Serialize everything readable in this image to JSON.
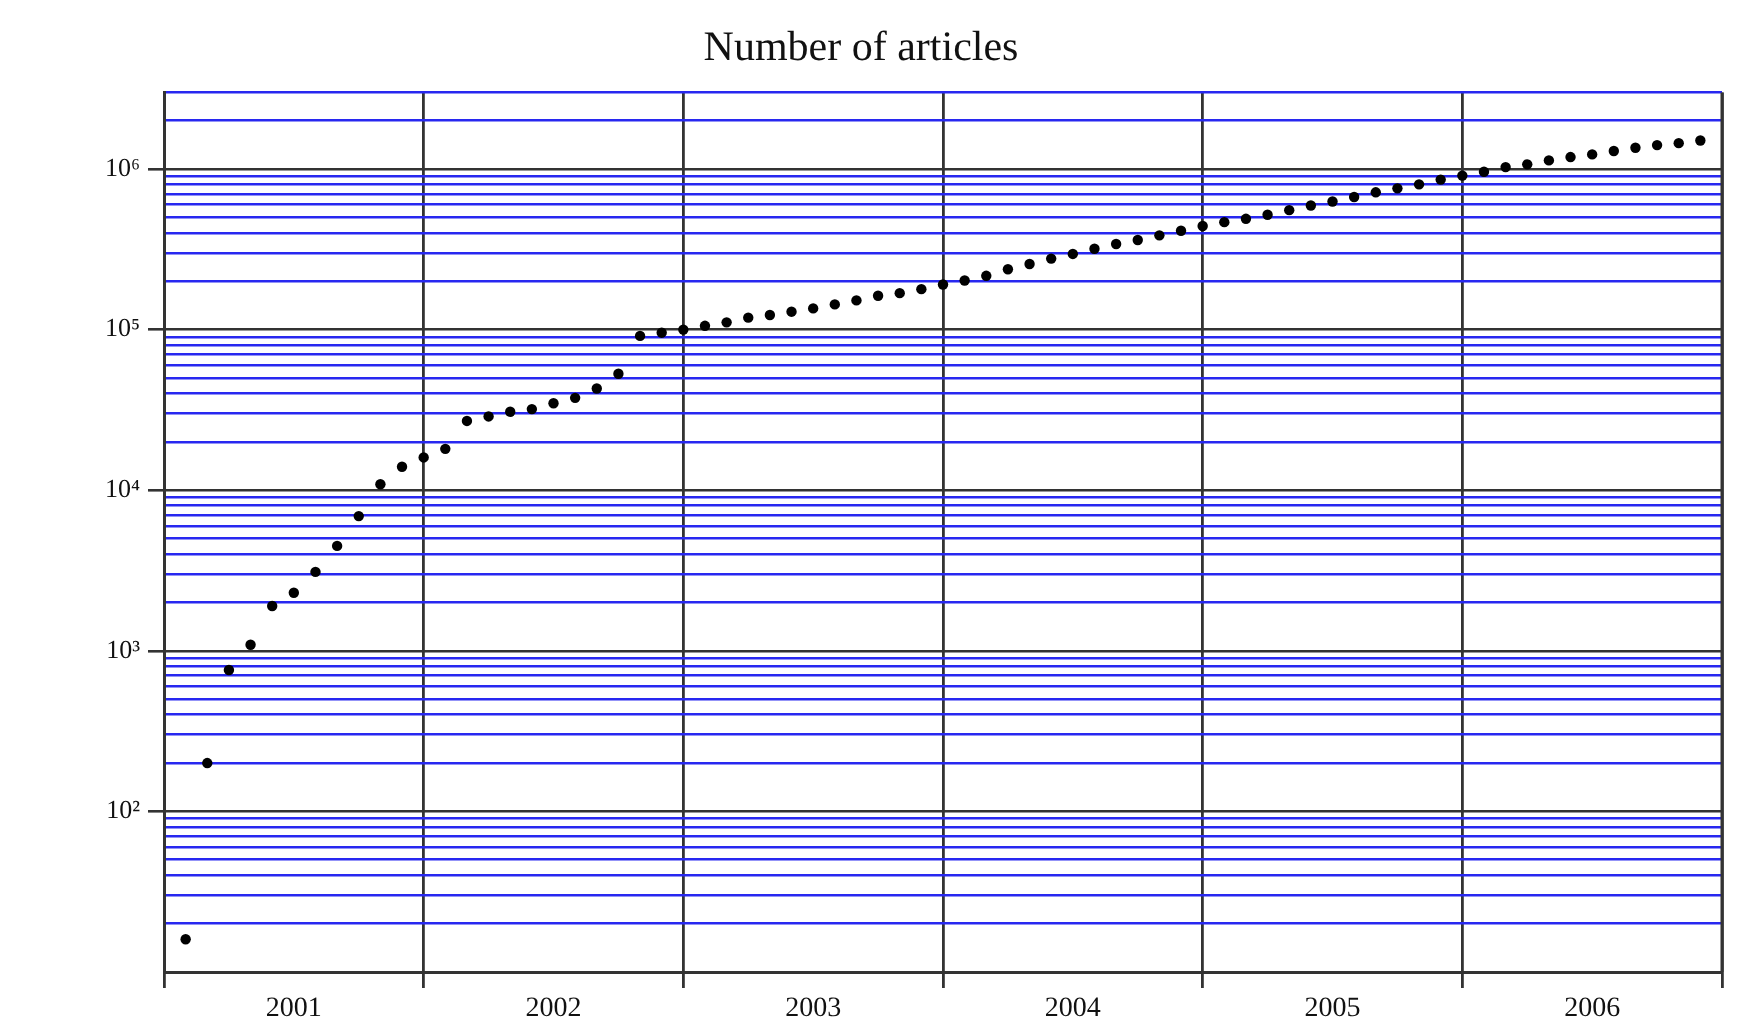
{
  "chart_data": {
    "type": "scatter",
    "title": "Number of articles",
    "log": "y",
    "grid": true,
    "marker": "circle",
    "legend": false,
    "x": [
      "2001-02",
      "2001-03",
      "2001-04",
      "2001-05",
      "2001-06",
      "2001-07",
      "2001-08",
      "2001-09",
      "2001-10",
      "2001-11",
      "2001-12",
      "2002-01",
      "2002-02",
      "2002-03",
      "2002-04",
      "2002-05",
      "2002-06",
      "2002-07",
      "2002-08",
      "2002-09",
      "2002-10",
      "2002-11",
      "2002-12",
      "2003-01",
      "2003-02",
      "2003-03",
      "2003-04",
      "2003-05",
      "2003-06",
      "2003-07",
      "2003-08",
      "2003-09",
      "2003-10",
      "2003-11",
      "2003-12",
      "2004-01",
      "2004-02",
      "2004-03",
      "2004-04",
      "2004-05",
      "2004-06",
      "2004-07",
      "2004-08",
      "2004-09",
      "2004-10",
      "2004-11",
      "2004-12",
      "2005-01",
      "2005-02",
      "2005-03",
      "2005-04",
      "2005-05",
      "2005-06",
      "2005-07",
      "2005-08",
      "2005-09",
      "2005-10",
      "2005-11",
      "2005-12",
      "2006-01",
      "2006-02",
      "2006-03",
      "2006-04",
      "2006-05",
      "2006-06",
      "2006-07",
      "2006-08",
      "2006-09",
      "2006-10",
      "2006-11",
      "2006-12"
    ],
    "series": [
      {
        "color": "#000000",
        "values": [
          16,
          200,
          760,
          1090,
          1900,
          2300,
          3100,
          4500,
          6900,
          10900,
          14000,
          16000,
          18100,
          27000,
          28800,
          30800,
          32000,
          34800,
          37600,
          43000,
          53100,
          91400,
          95700,
          100000,
          105600,
          111000,
          118700,
          123300,
          129300,
          135600,
          143600,
          152000,
          162600,
          168700,
          178700,
          191000,
          202200,
          216300,
          237600,
          256300,
          276800,
          296000,
          319000,
          341500,
          361500,
          386400,
          413000,
          441600,
          467000,
          489800,
          518800,
          554600,
          593000,
          628000,
          670000,
          716000,
          758000,
          803000,
          859000,
          910000,
          962000,
          1028000,
          1069000,
          1132000,
          1187000,
          1233000,
          1294000,
          1356000,
          1409000,
          1449000,
          1506000
        ]
      }
    ],
    "xlim": [
      "2001-01",
      "2007-01"
    ],
    "xticks": [
      {
        "value": "2001-01",
        "label": null
      },
      {
        "value": "2001-07",
        "label": "2001"
      },
      {
        "value": "2002-01",
        "label": null
      },
      {
        "value": "2002-07",
        "label": "2002"
      },
      {
        "value": "2003-01",
        "label": null
      },
      {
        "value": "2003-07",
        "label": "2003"
      },
      {
        "value": "2004-01",
        "label": null
      },
      {
        "value": "2004-07",
        "label": "2004"
      },
      {
        "value": "2005-01",
        "label": null
      },
      {
        "value": "2005-07",
        "label": "2005"
      },
      {
        "value": "2006-01",
        "label": null
      },
      {
        "value": "2006-07",
        "label": "2006"
      },
      {
        "value": "2007-01",
        "label": null
      }
    ],
    "ylim": [
      10,
      3000000
    ],
    "yticks": [
      {
        "value": 20,
        "label": null
      },
      {
        "value": 30,
        "label": null
      },
      {
        "value": 40,
        "label": null
      },
      {
        "value": 50,
        "label": null
      },
      {
        "value": 60,
        "label": null
      },
      {
        "value": 70,
        "label": null
      },
      {
        "value": 80,
        "label": null
      },
      {
        "value": 90,
        "label": null
      },
      {
        "value": 100,
        "label": "10²"
      },
      {
        "value": 200,
        "label": null
      },
      {
        "value": 300,
        "label": null
      },
      {
        "value": 400,
        "label": null
      },
      {
        "value": 500,
        "label": null
      },
      {
        "value": 600,
        "label": null
      },
      {
        "value": 700,
        "label": null
      },
      {
        "value": 800,
        "label": null
      },
      {
        "value": 900,
        "label": null
      },
      {
        "value": 1000,
        "label": "10³"
      },
      {
        "value": 2000,
        "label": null
      },
      {
        "value": 3000,
        "label": null
      },
      {
        "value": 4000,
        "label": null
      },
      {
        "value": 5000,
        "label": null
      },
      {
        "value": 6000,
        "label": null
      },
      {
        "value": 7000,
        "label": null
      },
      {
        "value": 8000,
        "label": null
      },
      {
        "value": 9000,
        "label": null
      },
      {
        "value": 10000,
        "label": "10⁴"
      },
      {
        "value": 20000,
        "label": null
      },
      {
        "value": 30000,
        "label": null
      },
      {
        "value": 40000,
        "label": null
      },
      {
        "value": 50000,
        "label": null
      },
      {
        "value": 60000,
        "label": null
      },
      {
        "value": 70000,
        "label": null
      },
      {
        "value": 80000,
        "label": null
      },
      {
        "value": 90000,
        "label": null
      },
      {
        "value": 100000,
        "label": "10⁵"
      },
      {
        "value": 200000,
        "label": null
      },
      {
        "value": 300000,
        "label": null
      },
      {
        "value": 400000,
        "label": null
      },
      {
        "value": 500000,
        "label": null
      },
      {
        "value": 600000,
        "label": null
      },
      {
        "value": 700000,
        "label": null
      },
      {
        "value": 800000,
        "label": null
      },
      {
        "value": 900000,
        "label": null
      },
      {
        "value": 1000000,
        "label": "10⁶"
      },
      {
        "value": 2000000,
        "label": null
      },
      {
        "value": 3000000,
        "label": null
      }
    ]
  }
}
